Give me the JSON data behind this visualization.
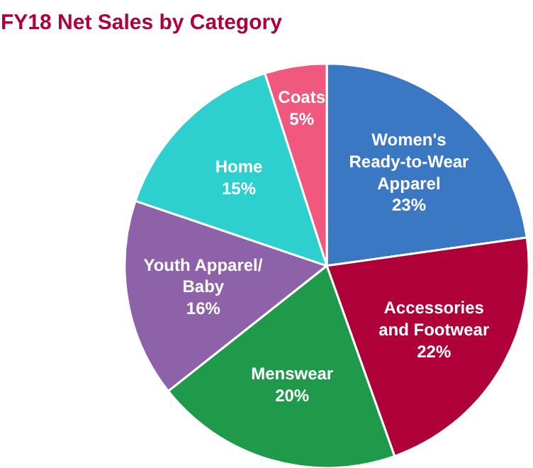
{
  "chart_data": {
    "type": "pie",
    "title": "FY18 Net Sales by Category",
    "categories": [
      "Women's\nReady-to-Wear\nApparel",
      "Accessories\nand Footwear",
      "Menswear",
      "Youth Apparel/\nBaby",
      "Home",
      "Coats"
    ],
    "values": [
      23,
      22,
      20,
      16,
      15,
      5
    ],
    "value_labels": [
      "23%",
      "22%",
      "20%",
      "16%",
      "15%",
      "5%"
    ],
    "colors": [
      "#3a78c4",
      "#b0003a",
      "#1e9a4a",
      "#8e62a8",
      "#2ecfcf",
      "#f0587e"
    ]
  }
}
